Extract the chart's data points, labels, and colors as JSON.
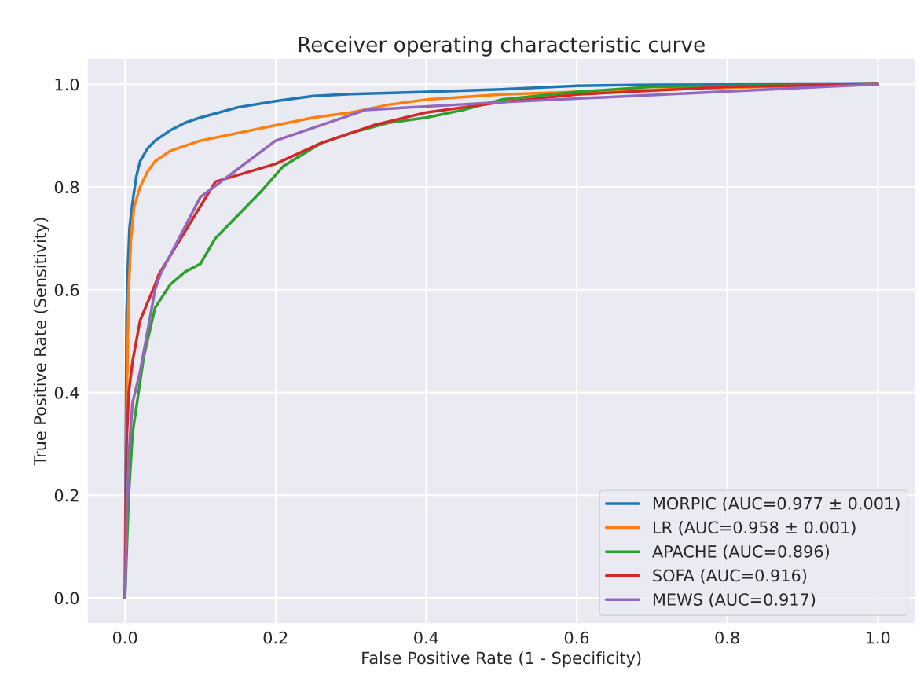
{
  "chart_data": {
    "type": "line",
    "title": "Receiver operating characteristic curve",
    "xlabel": "False Positive Rate (1 - Specificity)",
    "ylabel": "True Positive Rate (Sensitivity)",
    "xlim": [
      -0.05,
      1.05
    ],
    "ylim": [
      -0.05,
      1.05
    ],
    "xticks": [
      {
        "value": 0,
        "label": "0.0"
      },
      {
        "value": 0.2,
        "label": "0.2"
      },
      {
        "value": 0.4,
        "label": "0.4"
      },
      {
        "value": 0.6,
        "label": "0.6"
      },
      {
        "value": 0.8,
        "label": "0.8"
      },
      {
        "value": 1,
        "label": "1.0"
      }
    ],
    "yticks": [
      {
        "value": 0,
        "label": "0.0"
      },
      {
        "value": 0.2,
        "label": "0.2"
      },
      {
        "value": 0.4,
        "label": "0.4"
      },
      {
        "value": 0.6,
        "label": "0.6"
      },
      {
        "value": 0.8,
        "label": "0.8"
      },
      {
        "value": 1,
        "label": "1.0"
      }
    ],
    "grid": true,
    "legend": "bottom right",
    "series": [
      {
        "name": "MORPIC (AUC=0.977 ± 0.001)",
        "color": "#1f77b4",
        "x": [
          0,
          0.001,
          0.002,
          0.004,
          0.006,
          0.01,
          0.015,
          0.02,
          0.03,
          0.04,
          0.06,
          0.08,
          0.1,
          0.15,
          0.2,
          0.25,
          0.3,
          0.4,
          0.5,
          0.6,
          0.7,
          1
        ],
        "values": [
          0,
          0.3,
          0.55,
          0.65,
          0.72,
          0.77,
          0.82,
          0.85,
          0.875,
          0.89,
          0.91,
          0.925,
          0.935,
          0.955,
          0.967,
          0.977,
          0.981,
          0.985,
          0.99,
          0.997,
          0.999,
          1
        ]
      },
      {
        "name": "LR (AUC=0.958 ± 0.001)",
        "color": "#ff7f0e",
        "x": [
          0,
          0.002,
          0.005,
          0.008,
          0.012,
          0.02,
          0.03,
          0.04,
          0.06,
          0.08,
          0.1,
          0.15,
          0.2,
          0.25,
          0.3,
          0.35,
          0.4,
          0.5,
          0.6,
          0.8,
          1
        ],
        "values": [
          0,
          0.35,
          0.6,
          0.7,
          0.76,
          0.8,
          0.83,
          0.85,
          0.87,
          0.88,
          0.89,
          0.905,
          0.92,
          0.935,
          0.945,
          0.96,
          0.97,
          0.98,
          0.985,
          0.993,
          1
        ]
      },
      {
        "name": "APACHE (AUC=0.896)",
        "color": "#2ca02c",
        "x": [
          0,
          0.005,
          0.01,
          0.02,
          0.025,
          0.04,
          0.06,
          0.08,
          0.1,
          0.12,
          0.15,
          0.18,
          0.21,
          0.26,
          0.3,
          0.35,
          0.4,
          0.45,
          0.5,
          0.6,
          0.7,
          1
        ],
        "values": [
          0,
          0.2,
          0.32,
          0.42,
          0.47,
          0.565,
          0.61,
          0.635,
          0.65,
          0.7,
          0.745,
          0.79,
          0.84,
          0.885,
          0.905,
          0.925,
          0.935,
          0.95,
          0.97,
          0.985,
          0.995,
          1
        ]
      },
      {
        "name": "SOFA (AUC=0.916)",
        "color": "#d62728",
        "x": [
          0,
          0.002,
          0.005,
          0.01,
          0.02,
          0.04,
          0.045,
          0.12,
          0.2,
          0.26,
          0.33,
          0.4,
          0.5,
          0.6,
          0.8,
          1
        ],
        "values": [
          0,
          0.3,
          0.4,
          0.46,
          0.54,
          0.61,
          0.63,
          0.81,
          0.845,
          0.885,
          0.92,
          0.945,
          0.965,
          0.98,
          0.995,
          1
        ]
      },
      {
        "name": "MEWS (AUC=0.917)",
        "color": "#9467bd",
        "x": [
          0,
          0.003,
          0.006,
          0.01,
          0.02,
          0.04,
          0.047,
          0.1,
          0.2,
          0.32,
          0.5,
          1
        ],
        "values": [
          0,
          0.2,
          0.3,
          0.38,
          0.44,
          0.6,
          0.63,
          0.78,
          0.89,
          0.95,
          0.965,
          1
        ]
      }
    ]
  }
}
